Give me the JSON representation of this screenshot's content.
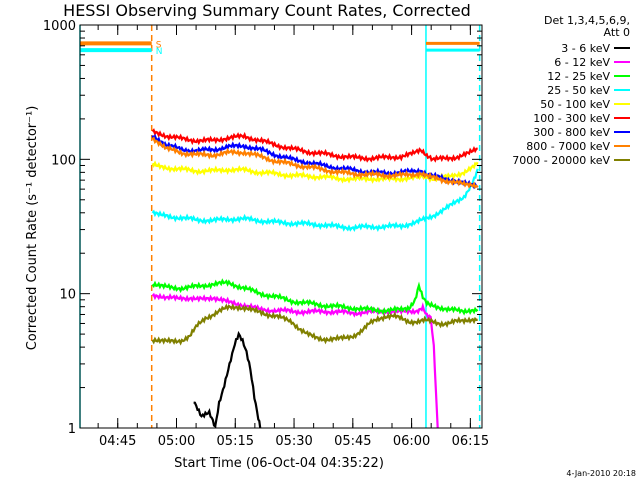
{
  "chart_data": {
    "type": "line",
    "title": "HESSI Observing Summary Count Rates, Corrected",
    "ylabel": "Corrected Count Rate (s⁻¹ detector⁻¹)",
    "xlabel": "Start Time (06-Oct-04 04:35:22)",
    "yscale": "log",
    "ylim": [
      1,
      1000
    ],
    "xlim_minutes": [
      0,
      102.6
    ],
    "yticks": [
      {
        "v": 1,
        "label": "1"
      },
      {
        "v": 10,
        "label": "10"
      },
      {
        "v": 100,
        "label": "100"
      },
      {
        "v": 1000,
        "label": "1000"
      }
    ],
    "xticks": [
      {
        "m": 9.63,
        "label": "04:45"
      },
      {
        "m": 24.63,
        "label": "05:00"
      },
      {
        "m": 39.63,
        "label": "05:15"
      },
      {
        "m": 54.63,
        "label": "05:30"
      },
      {
        "m": 69.63,
        "label": "05:45"
      },
      {
        "m": 84.63,
        "label": "06:00"
      },
      {
        "m": 99.63,
        "label": "06:15"
      }
    ],
    "legend": {
      "header": [
        "Det 1,3,4,5,6,9,",
        "Att 0"
      ],
      "placement": "right",
      "entries": [
        {
          "label": "3 - 6 keV",
          "color": "#000000"
        },
        {
          "label": "6 - 12 keV",
          "color": "#ff00ff"
        },
        {
          "label": "12 - 25 keV",
          "color": "#00ff00"
        },
        {
          "label": "25 - 50 keV",
          "color": "#00ffff"
        },
        {
          "label": "50 - 100 keV",
          "color": "#ffff00"
        },
        {
          "label": "100 - 300 keV",
          "color": "#ff0000"
        },
        {
          "label": "300 - 800 keV",
          "color": "#0000ff"
        },
        {
          "label": "800 - 7000 keV",
          "color": "#ff8000"
        },
        {
          "label": "7000 - 20000 keV",
          "color": "#808000"
        }
      ]
    },
    "flags": [
      {
        "label": "S",
        "color": "#ff8000",
        "y": 730
      },
      {
        "label": "N",
        "color": "#00ffff",
        "y": 650
      }
    ],
    "night_intervals_minutes": [
      [
        0,
        18.3
      ],
      [
        88.3,
        102
      ]
    ],
    "series": [
      {
        "name": "3 - 6 keV",
        "color": "#000000",
        "points": [
          [
            29,
            1.6
          ],
          [
            31,
            1.2
          ],
          [
            33,
            1.3
          ],
          [
            34.5,
            1.0
          ],
          [
            35.5,
            1.5
          ],
          [
            36.5,
            1.9
          ],
          [
            37.5,
            2.5
          ],
          [
            38.5,
            3.3
          ],
          [
            39.5,
            4.3
          ],
          [
            40.5,
            5.0
          ],
          [
            41.5,
            4.4
          ],
          [
            42.5,
            3.6
          ],
          [
            43.5,
            2.7
          ],
          [
            44.5,
            1.7
          ],
          [
            45.5,
            1.2
          ],
          [
            46,
            1.0
          ]
        ]
      },
      {
        "name": "6 - 12 keV",
        "color": "#ff00ff",
        "points": [
          [
            18.5,
            9.5
          ],
          [
            22,
            9.2
          ],
          [
            26,
            9.4
          ],
          [
            30,
            9.0
          ],
          [
            34,
            9.4
          ],
          [
            38,
            8.6
          ],
          [
            42,
            8.2
          ],
          [
            46,
            7.6
          ],
          [
            50,
            7.5
          ],
          [
            54,
            7.4
          ],
          [
            58,
            7.3
          ],
          [
            62,
            7.4
          ],
          [
            66,
            7.3
          ],
          [
            70,
            7.2
          ],
          [
            74,
            7.3
          ],
          [
            78,
            7.4
          ],
          [
            82,
            7.3
          ],
          [
            86,
            7.5
          ],
          [
            87.5,
            7.9
          ],
          [
            88.5,
            7.0
          ],
          [
            89.5,
            6.8
          ],
          [
            90.3,
            4.0
          ],
          [
            90.8,
            2.0
          ],
          [
            91.3,
            1.0
          ]
        ]
      },
      {
        "name": "12 - 25 keV",
        "color": "#00ff00",
        "points": [
          [
            18.5,
            11.5
          ],
          [
            22,
            11.2
          ],
          [
            26,
            11.0
          ],
          [
            30,
            11.3
          ],
          [
            34,
            11.8
          ],
          [
            38,
            12.0
          ],
          [
            42,
            11.0
          ],
          [
            46,
            10.0
          ],
          [
            50,
            9.5
          ],
          [
            54,
            8.8
          ],
          [
            58,
            8.5
          ],
          [
            62,
            8.2
          ],
          [
            66,
            8.0
          ],
          [
            70,
            7.8
          ],
          [
            74,
            7.6
          ],
          [
            78,
            7.5
          ],
          [
            82,
            7.6
          ],
          [
            84,
            7.9
          ],
          [
            85.5,
            8.8
          ],
          [
            86.5,
            11.5
          ],
          [
            87.5,
            9.6
          ],
          [
            88.5,
            8.7
          ],
          [
            90,
            8.2
          ],
          [
            94,
            7.6
          ],
          [
            98,
            7.4
          ],
          [
            101.5,
            7.6
          ]
        ]
      },
      {
        "name": "25 - 50 keV",
        "color": "#00ffff",
        "points": [
          [
            18.5,
            40
          ],
          [
            22,
            38
          ],
          [
            26,
            36.5
          ],
          [
            30,
            35.5
          ],
          [
            34,
            35
          ],
          [
            38,
            36
          ],
          [
            42,
            36
          ],
          [
            46,
            35
          ],
          [
            50,
            34
          ],
          [
            54,
            33.5
          ],
          [
            58,
            33
          ],
          [
            62,
            32.5
          ],
          [
            66,
            31.5
          ],
          [
            70,
            31
          ],
          [
            74,
            31.5
          ],
          [
            78,
            31.5
          ],
          [
            82,
            32
          ],
          [
            86,
            34
          ],
          [
            90,
            38
          ],
          [
            94,
            44
          ],
          [
            98,
            53
          ],
          [
            100,
            65
          ],
          [
            101.5,
            85
          ]
        ]
      },
      {
        "name": "50 - 100 keV",
        "color": "#ffff00",
        "points": [
          [
            18.5,
            94
          ],
          [
            22,
            87
          ],
          [
            26,
            84
          ],
          [
            30,
            82
          ],
          [
            34,
            82
          ],
          [
            38,
            84
          ],
          [
            42,
            83
          ],
          [
            46,
            80
          ],
          [
            50,
            78
          ],
          [
            54,
            76
          ],
          [
            58,
            75
          ],
          [
            62,
            74
          ],
          [
            66,
            72
          ],
          [
            70,
            71
          ],
          [
            74,
            72
          ],
          [
            78,
            71
          ],
          [
            82,
            72
          ],
          [
            86,
            73
          ],
          [
            88,
            75
          ],
          [
            90,
            72
          ],
          [
            94,
            74
          ],
          [
            98,
            80
          ],
          [
            101.5,
            95
          ]
        ]
      },
      {
        "name": "100 - 300 keV",
        "color": "#ff0000",
        "points": [
          [
            18.5,
            165
          ],
          [
            22,
            150
          ],
          [
            26,
            142
          ],
          [
            30,
            138
          ],
          [
            34,
            138
          ],
          [
            38,
            145
          ],
          [
            42,
            148
          ],
          [
            46,
            138
          ],
          [
            50,
            128
          ],
          [
            54,
            120
          ],
          [
            58,
            114
          ],
          [
            62,
            110
          ],
          [
            66,
            106
          ],
          [
            70,
            103
          ],
          [
            74,
            102
          ],
          [
            78,
            103
          ],
          [
            82,
            105
          ],
          [
            85,
            110
          ],
          [
            87,
            118
          ],
          [
            88.5,
            104
          ],
          [
            90,
            100
          ],
          [
            93,
            101
          ],
          [
            96,
            104
          ],
          [
            99,
            110
          ],
          [
            101.5,
            120
          ]
        ]
      },
      {
        "name": "300 - 800 keV",
        "color": "#0000ff",
        "points": [
          [
            18.5,
            150
          ],
          [
            22,
            128
          ],
          [
            26,
            118
          ],
          [
            30,
            116
          ],
          [
            34,
            118
          ],
          [
            38,
            124
          ],
          [
            42,
            126
          ],
          [
            46,
            118
          ],
          [
            50,
            108
          ],
          [
            54,
            100
          ],
          [
            58,
            95
          ],
          [
            62,
            90
          ],
          [
            66,
            86
          ],
          [
            70,
            83
          ],
          [
            74,
            80
          ],
          [
            78,
            79
          ],
          [
            82,
            80
          ],
          [
            85,
            81
          ],
          [
            87,
            83
          ],
          [
            89,
            76
          ],
          [
            92,
            73
          ],
          [
            95,
            70
          ],
          [
            98,
            66
          ],
          [
            101.5,
            62
          ]
        ]
      },
      {
        "name": "800 - 7000 keV",
        "color": "#ff8000",
        "points": [
          [
            18.5,
            140
          ],
          [
            22,
            120
          ],
          [
            26,
            112
          ],
          [
            30,
            108
          ],
          [
            34,
            108
          ],
          [
            38,
            112
          ],
          [
            42,
            113
          ],
          [
            46,
            105
          ],
          [
            50,
            97
          ],
          [
            54,
            92
          ],
          [
            58,
            88
          ],
          [
            62,
            84
          ],
          [
            66,
            80
          ],
          [
            70,
            78
          ],
          [
            74,
            77
          ],
          [
            78,
            76
          ],
          [
            82,
            76
          ],
          [
            85,
            77
          ],
          [
            87,
            79
          ],
          [
            89,
            74
          ],
          [
            92,
            71
          ],
          [
            95,
            68
          ],
          [
            98,
            65
          ],
          [
            101.5,
            62
          ]
        ]
      },
      {
        "name": "7000 - 20000 keV",
        "color": "#808000",
        "points": [
          [
            18.5,
            4.4
          ],
          [
            22,
            4.4
          ],
          [
            26,
            4.5
          ],
          [
            28,
            4.8
          ],
          [
            30,
            5.8
          ],
          [
            32,
            6.6
          ],
          [
            34,
            7.0
          ],
          [
            36,
            7.5
          ],
          [
            38,
            7.9
          ],
          [
            40,
            8.0
          ],
          [
            42,
            7.8
          ],
          [
            44,
            7.5
          ],
          [
            46,
            7.3
          ],
          [
            48,
            7.0
          ],
          [
            50,
            6.8
          ],
          [
            52,
            6.5
          ],
          [
            54,
            6.2
          ],
          [
            56,
            5.5
          ],
          [
            58,
            5.0
          ],
          [
            60,
            4.7
          ],
          [
            62,
            4.6
          ],
          [
            64,
            4.6
          ],
          [
            66,
            4.6
          ],
          [
            68,
            4.7
          ],
          [
            70,
            4.9
          ],
          [
            72,
            5.3
          ],
          [
            74,
            6.0
          ],
          [
            76,
            6.5
          ],
          [
            78,
            6.8
          ],
          [
            80,
            6.8
          ],
          [
            82,
            6.5
          ],
          [
            84,
            6.2
          ],
          [
            86,
            6.2
          ],
          [
            88,
            6.3
          ],
          [
            90,
            6.2
          ],
          [
            92,
            6.0
          ],
          [
            94,
            6.0
          ],
          [
            96,
            6.2
          ],
          [
            98,
            6.3
          ],
          [
            101.5,
            6.4
          ]
        ]
      }
    ],
    "grid": false
  },
  "footer_date": "4-Jan-2010 20:18"
}
